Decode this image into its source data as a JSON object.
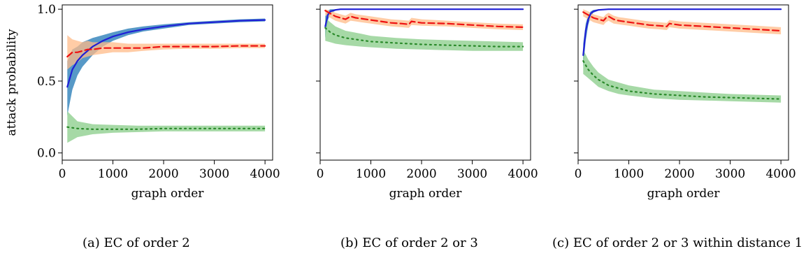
{
  "colors": {
    "blue_line": "#1f1fd6",
    "blue_band": "#1f77b4",
    "red_line": "#ee1111",
    "orange_band": "#ffbb88",
    "green_line": "#2a8a2a",
    "green_band": "#88cc88"
  },
  "captions": [
    "(a) EC of order 2",
    "(b) EC of order 2 or 3",
    "(c) EC of order 2 or 3 within distance 1"
  ],
  "chart_data": [
    {
      "type": "line",
      "caption": "(a) EC of order 2",
      "xlabel": "graph order",
      "ylabel": "attack probability",
      "xlim": [
        0,
        4150
      ],
      "ylim": [
        -0.05,
        1.03
      ],
      "xticks": [
        0,
        1000,
        2000,
        3000,
        4000
      ],
      "xtick_labels": [
        "0",
        "1000",
        "2000",
        "3000",
        "4000"
      ],
      "yticks": [
        0.0,
        0.5,
        1.0
      ],
      "ytick_labels": [
        "0.0",
        "0.5",
        "1.0"
      ],
      "grid": false,
      "series": [
        {
          "style": "solid",
          "color": "#1f1fd6",
          "band_color": "#1f77b4",
          "x": [
            100,
            200,
            300,
            400,
            600,
            800,
            1000,
            1300,
            1600,
            2000,
            2500,
            3000,
            3500,
            4000
          ],
          "y": [
            0.46,
            0.58,
            0.64,
            0.68,
            0.74,
            0.78,
            0.81,
            0.84,
            0.86,
            0.88,
            0.9,
            0.91,
            0.92,
            0.925
          ],
          "y_low": [
            0.26,
            0.44,
            0.54,
            0.6,
            0.68,
            0.74,
            0.78,
            0.82,
            0.845,
            0.865,
            0.89,
            0.9,
            0.91,
            0.915
          ],
          "y_high": [
            0.64,
            0.72,
            0.74,
            0.77,
            0.8,
            0.82,
            0.84,
            0.865,
            0.88,
            0.895,
            0.91,
            0.92,
            0.93,
            0.935
          ]
        },
        {
          "style": "dashed",
          "color": "#ee1111",
          "band_color": "#ffbb88",
          "x": [
            100,
            200,
            300,
            400,
            500,
            600,
            800,
            1000,
            1300,
            1600,
            2000,
            2500,
            3000,
            3500,
            4000
          ],
          "y": [
            0.67,
            0.7,
            0.7,
            0.71,
            0.72,
            0.72,
            0.73,
            0.73,
            0.73,
            0.73,
            0.74,
            0.74,
            0.74,
            0.745,
            0.745
          ],
          "y_low": [
            0.58,
            0.61,
            0.63,
            0.66,
            0.67,
            0.68,
            0.69,
            0.7,
            0.7,
            0.71,
            0.72,
            0.725,
            0.725,
            0.73,
            0.73
          ],
          "y_high": [
            0.82,
            0.79,
            0.78,
            0.77,
            0.78,
            0.77,
            0.77,
            0.77,
            0.76,
            0.76,
            0.76,
            0.76,
            0.76,
            0.76,
            0.76
          ]
        },
        {
          "style": "dotted",
          "color": "#2a8a2a",
          "band_color": "#88cc88",
          "x": [
            100,
            300,
            600,
            1000,
            1500,
            2000,
            2500,
            3000,
            3500,
            4000
          ],
          "y": [
            0.18,
            0.17,
            0.165,
            0.165,
            0.165,
            0.17,
            0.17,
            0.17,
            0.17,
            0.17
          ],
          "y_low": [
            0.07,
            0.11,
            0.13,
            0.14,
            0.145,
            0.15,
            0.15,
            0.15,
            0.15,
            0.15
          ],
          "y_high": [
            0.29,
            0.22,
            0.2,
            0.195,
            0.19,
            0.19,
            0.19,
            0.19,
            0.19,
            0.19
          ]
        }
      ]
    },
    {
      "type": "line",
      "caption": "(b) EC of order 2 or 3",
      "xlabel": "graph order",
      "ylabel": "",
      "xlim": [
        0,
        4150
      ],
      "ylim": [
        -0.05,
        1.03
      ],
      "xticks": [
        0,
        1000,
        2000,
        3000,
        4000
      ],
      "xtick_labels": [
        "0",
        "1000",
        "2000",
        "3000",
        "4000"
      ],
      "yticks": [
        0.0,
        0.5,
        1.0
      ],
      "ytick_labels": [
        "",
        "",
        ""
      ],
      "grid": false,
      "series": [
        {
          "style": "solid",
          "color": "#1f1fd6",
          "band_color": "#1f77b4",
          "x": [
            100,
            150,
            200,
            300,
            400,
            600,
            1000,
            2000,
            3000,
            4000
          ],
          "y": [
            0.88,
            0.96,
            0.985,
            0.995,
            1.0,
            1.0,
            1.0,
            1.0,
            1.0,
            1.0
          ],
          "y_low": [
            0.8,
            0.92,
            0.97,
            0.99,
            1.0,
            1.0,
            1.0,
            1.0,
            1.0,
            1.0
          ],
          "y_high": [
            0.95,
            0.99,
            1.0,
            1.0,
            1.0,
            1.0,
            1.0,
            1.0,
            1.0,
            1.0
          ]
        },
        {
          "style": "dashed",
          "color": "#ee1111",
          "band_color": "#ffbb88",
          "x": [
            100,
            200,
            300,
            400,
            500,
            550,
            600,
            700,
            800,
            1000,
            1200,
            1400,
            1600,
            1750,
            1800,
            2000,
            2500,
            3000,
            3500,
            4000
          ],
          "y": [
            0.99,
            0.97,
            0.95,
            0.94,
            0.93,
            0.94,
            0.95,
            0.94,
            0.935,
            0.925,
            0.915,
            0.905,
            0.9,
            0.895,
            0.915,
            0.905,
            0.9,
            0.89,
            0.88,
            0.875
          ],
          "y_low": [
            0.96,
            0.94,
            0.92,
            0.91,
            0.9,
            0.91,
            0.92,
            0.915,
            0.91,
            0.9,
            0.89,
            0.88,
            0.875,
            0.87,
            0.89,
            0.885,
            0.88,
            0.87,
            0.86,
            0.855
          ],
          "y_high": [
            1.0,
            0.99,
            0.975,
            0.965,
            0.955,
            0.965,
            0.975,
            0.965,
            0.96,
            0.95,
            0.94,
            0.93,
            0.925,
            0.92,
            0.94,
            0.93,
            0.92,
            0.91,
            0.9,
            0.895
          ]
        },
        {
          "style": "dotted",
          "color": "#2a8a2a",
          "band_color": "#88cc88",
          "x": [
            100,
            200,
            300,
            500,
            800,
            1000,
            1500,
            2000,
            2500,
            3000,
            3500,
            4000
          ],
          "y": [
            0.87,
            0.84,
            0.82,
            0.8,
            0.785,
            0.775,
            0.765,
            0.755,
            0.75,
            0.745,
            0.74,
            0.74
          ],
          "y_low": [
            0.78,
            0.77,
            0.76,
            0.75,
            0.74,
            0.735,
            0.725,
            0.72,
            0.715,
            0.71,
            0.71,
            0.71
          ],
          "y_high": [
            0.94,
            0.91,
            0.88,
            0.85,
            0.83,
            0.815,
            0.8,
            0.79,
            0.785,
            0.78,
            0.775,
            0.77
          ]
        }
      ]
    },
    {
      "type": "line",
      "caption": "(c) EC of order 2 or 3 within distance 1",
      "xlabel": "graph order",
      "ylabel": "",
      "xlim": [
        0,
        4150
      ],
      "ylim": [
        -0.05,
        1.03
      ],
      "xticks": [
        0,
        1000,
        2000,
        3000,
        4000
      ],
      "xtick_labels": [
        "0",
        "1000",
        "2000",
        "3000",
        "4000"
      ],
      "yticks": [
        0.0,
        0.5,
        1.0
      ],
      "ytick_labels": [
        "",
        "",
        ""
      ],
      "grid": false,
      "series": [
        {
          "style": "solid",
          "color": "#1f1fd6",
          "band_color": "#1f77b4",
          "x": [
            100,
            150,
            200,
            250,
            300,
            400,
            600,
            1000,
            2000,
            3000,
            4000
          ],
          "y": [
            0.68,
            0.85,
            0.93,
            0.97,
            0.985,
            0.995,
            1.0,
            1.0,
            1.0,
            1.0,
            1.0
          ],
          "y_low": [
            0.6,
            0.78,
            0.89,
            0.95,
            0.975,
            0.99,
            1.0,
            1.0,
            1.0,
            1.0,
            1.0
          ],
          "y_high": [
            0.76,
            0.9,
            0.96,
            0.985,
            0.995,
            1.0,
            1.0,
            1.0,
            1.0,
            1.0,
            1.0
          ]
        },
        {
          "style": "dashed",
          "color": "#ee1111",
          "band_color": "#ffbb88",
          "x": [
            100,
            200,
            300,
            400,
            500,
            550,
            600,
            700,
            800,
            1000,
            1200,
            1400,
            1600,
            1750,
            1800,
            2000,
            2500,
            3000,
            3500,
            4000
          ],
          "y": [
            0.98,
            0.96,
            0.94,
            0.93,
            0.92,
            0.94,
            0.95,
            0.93,
            0.92,
            0.91,
            0.9,
            0.89,
            0.885,
            0.88,
            0.9,
            0.89,
            0.88,
            0.87,
            0.86,
            0.85
          ],
          "y_low": [
            0.95,
            0.93,
            0.91,
            0.9,
            0.89,
            0.91,
            0.92,
            0.9,
            0.895,
            0.885,
            0.875,
            0.865,
            0.86,
            0.855,
            0.875,
            0.865,
            0.855,
            0.845,
            0.835,
            0.825
          ],
          "y_high": [
            1.0,
            0.985,
            0.965,
            0.955,
            0.945,
            0.965,
            0.975,
            0.955,
            0.945,
            0.935,
            0.925,
            0.915,
            0.91,
            0.905,
            0.925,
            0.915,
            0.905,
            0.895,
            0.885,
            0.875
          ]
        },
        {
          "style": "dotted",
          "color": "#2a8a2a",
          "band_color": "#88cc88",
          "x": [
            100,
            200,
            300,
            400,
            600,
            800,
            1000,
            1500,
            2000,
            2500,
            3000,
            3500,
            4000
          ],
          "y": [
            0.64,
            0.58,
            0.54,
            0.51,
            0.47,
            0.45,
            0.43,
            0.41,
            0.4,
            0.39,
            0.385,
            0.38,
            0.375
          ],
          "y_low": [
            0.55,
            0.52,
            0.49,
            0.46,
            0.43,
            0.41,
            0.4,
            0.38,
            0.37,
            0.365,
            0.36,
            0.355,
            0.35
          ],
          "y_high": [
            0.72,
            0.65,
            0.6,
            0.56,
            0.51,
            0.49,
            0.47,
            0.44,
            0.43,
            0.42,
            0.41,
            0.405,
            0.4
          ]
        }
      ]
    }
  ]
}
